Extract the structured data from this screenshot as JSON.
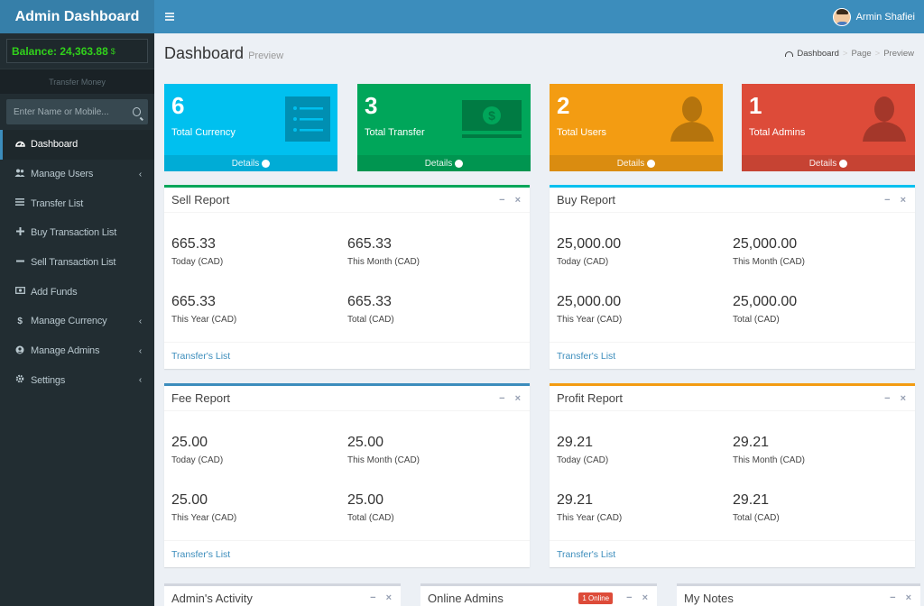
{
  "brand": "Admin Dashboard",
  "user": {
    "name": "Armin Shafiei"
  },
  "sidebar": {
    "balance_label": "Balance: 24,363.88",
    "balance_currency": "$",
    "transfer_money": "Transfer Money",
    "search_placeholder": "Enter Name or Mobile...",
    "items": [
      {
        "label": "Dashboard",
        "icon": "dashboard-icon",
        "active": true
      },
      {
        "label": "Manage Users",
        "icon": "users-icon",
        "chevron": true
      },
      {
        "label": "Transfer List",
        "icon": "list-icon"
      },
      {
        "label": "Buy Transaction List",
        "icon": "plus-icon"
      },
      {
        "label": "Sell Transaction List",
        "icon": "minus-icon"
      },
      {
        "label": "Add Funds",
        "icon": "money-icon"
      },
      {
        "label": "Manage Currency",
        "icon": "dollar-icon",
        "chevron": true
      },
      {
        "label": "Manage Admins",
        "icon": "user-circle-icon",
        "chevron": true
      },
      {
        "label": "Settings",
        "icon": "gear-icon",
        "chevron": true
      }
    ]
  },
  "page": {
    "title": "Dashboard",
    "subtitle": "Preview",
    "breadcrumb": [
      "Dashboard",
      "Page",
      "Preview"
    ]
  },
  "stats": [
    {
      "number": "6",
      "label": "Total Currency",
      "footer": "Details",
      "color": "#00c0ef"
    },
    {
      "number": "3",
      "label": "Total Transfer",
      "footer": "Details",
      "color": "#00a65a"
    },
    {
      "number": "2",
      "label": "Total Users",
      "footer": "Details",
      "color": "#f39c12"
    },
    {
      "number": "1",
      "label": "Total Admins",
      "footer": "Details",
      "color": "#dd4b39"
    }
  ],
  "reports": {
    "sell": {
      "title": "Sell Report",
      "today": "665.33",
      "month": "665.33",
      "year": "665.33",
      "total": "665.33",
      "link": "Transfer's List"
    },
    "buy": {
      "title": "Buy Report",
      "today": "25,000.00",
      "month": "25,000.00",
      "year": "25,000.00",
      "total": "25,000.00",
      "link": "Transfer's List"
    },
    "fee": {
      "title": "Fee Report",
      "today": "25.00",
      "month": "25.00",
      "year": "25.00",
      "total": "25.00",
      "link": "Transfer's List"
    },
    "profit": {
      "title": "Profit Report",
      "today": "29.21",
      "month": "29.21",
      "year": "29.21",
      "total": "29.21",
      "link": "Transfer's List"
    },
    "captions": {
      "today": "Today (CAD)",
      "month": "This Month (CAD)",
      "year": "This Year (CAD)",
      "total": "Total (CAD)"
    }
  },
  "bottom": {
    "activity": "Admin's Activity",
    "online": "Online Admins",
    "online_badge": "1 Online",
    "notes": "My Notes"
  }
}
